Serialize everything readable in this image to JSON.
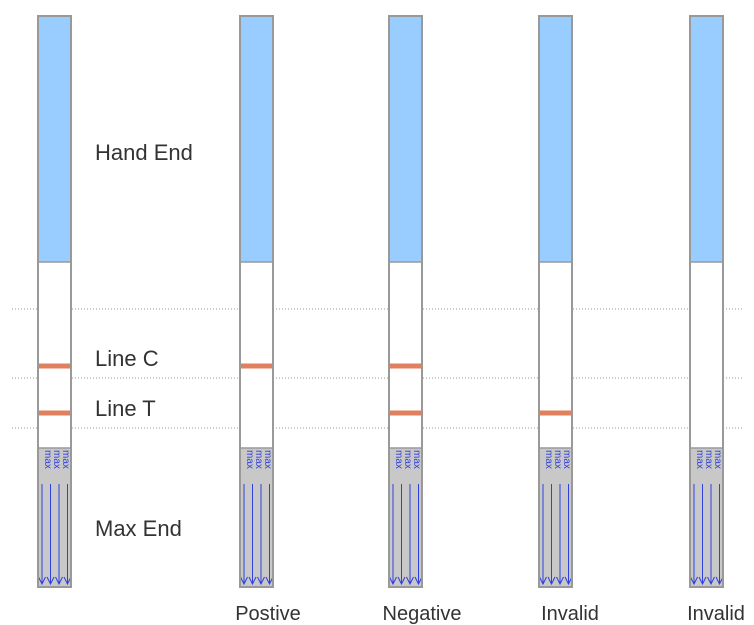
{
  "labels": {
    "hand_end": "Hand End",
    "line_c": "Line C",
    "line_t": "Line T",
    "max_end": "Max End"
  },
  "strips": [
    {
      "caption": "",
      "line_c": true,
      "line_t": true
    },
    {
      "caption": "Postive",
      "line_c": true,
      "line_t": false
    },
    {
      "caption": "Negative",
      "line_c": true,
      "line_t": true
    },
    {
      "caption": "Invalid",
      "line_c": false,
      "line_t": true
    },
    {
      "caption": "Invalid",
      "line_c": false,
      "line_t": false
    }
  ],
  "max_text": "max",
  "colors": {
    "hand_end": "#99ccff",
    "line": "#e0805f",
    "max_end": "#c8c8c8",
    "arrow": "#2f3fe0",
    "border": "#999999",
    "dotted": "#999999"
  }
}
